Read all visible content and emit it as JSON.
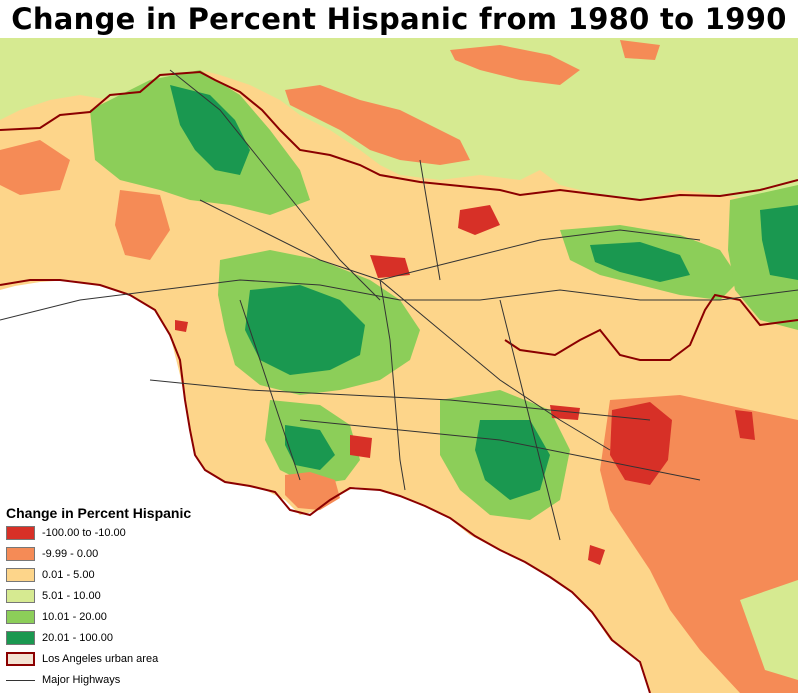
{
  "title": "Change in Percent Hispanic from 1980 to 1990",
  "colors": {
    "ocean": "#ffffff",
    "cat1": "#d73027",
    "cat2": "#f58b56",
    "cat3": "#fdd58a",
    "cat4": "#d6ea91",
    "cat5": "#8cce59",
    "cat6": "#1a9850",
    "urban_boundary": "#8b0000",
    "highways": "#333333"
  },
  "legend": {
    "title": "Change in Percent Hispanic",
    "items": [
      {
        "label": "-100.00 to -10.00",
        "color": "#d73027",
        "kind": "box"
      },
      {
        "label": "-9.99 - 0.00",
        "color": "#f58b56",
        "kind": "box"
      },
      {
        "label": "0.01 - 5.00",
        "color": "#fdd58a",
        "kind": "box"
      },
      {
        "label": "5.01 - 10.00",
        "color": "#d6ea91",
        "kind": "box"
      },
      {
        "label": "10.01 - 20.00",
        "color": "#8cce59",
        "kind": "box"
      },
      {
        "label": "20.01 - 100.00",
        "color": "#1a9850",
        "kind": "box"
      },
      {
        "label": "Los Angeles urban area",
        "color": "#f3e3d3",
        "kind": "outline"
      },
      {
        "label": "Major Highways",
        "color": "#333333",
        "kind": "line"
      }
    ]
  }
}
